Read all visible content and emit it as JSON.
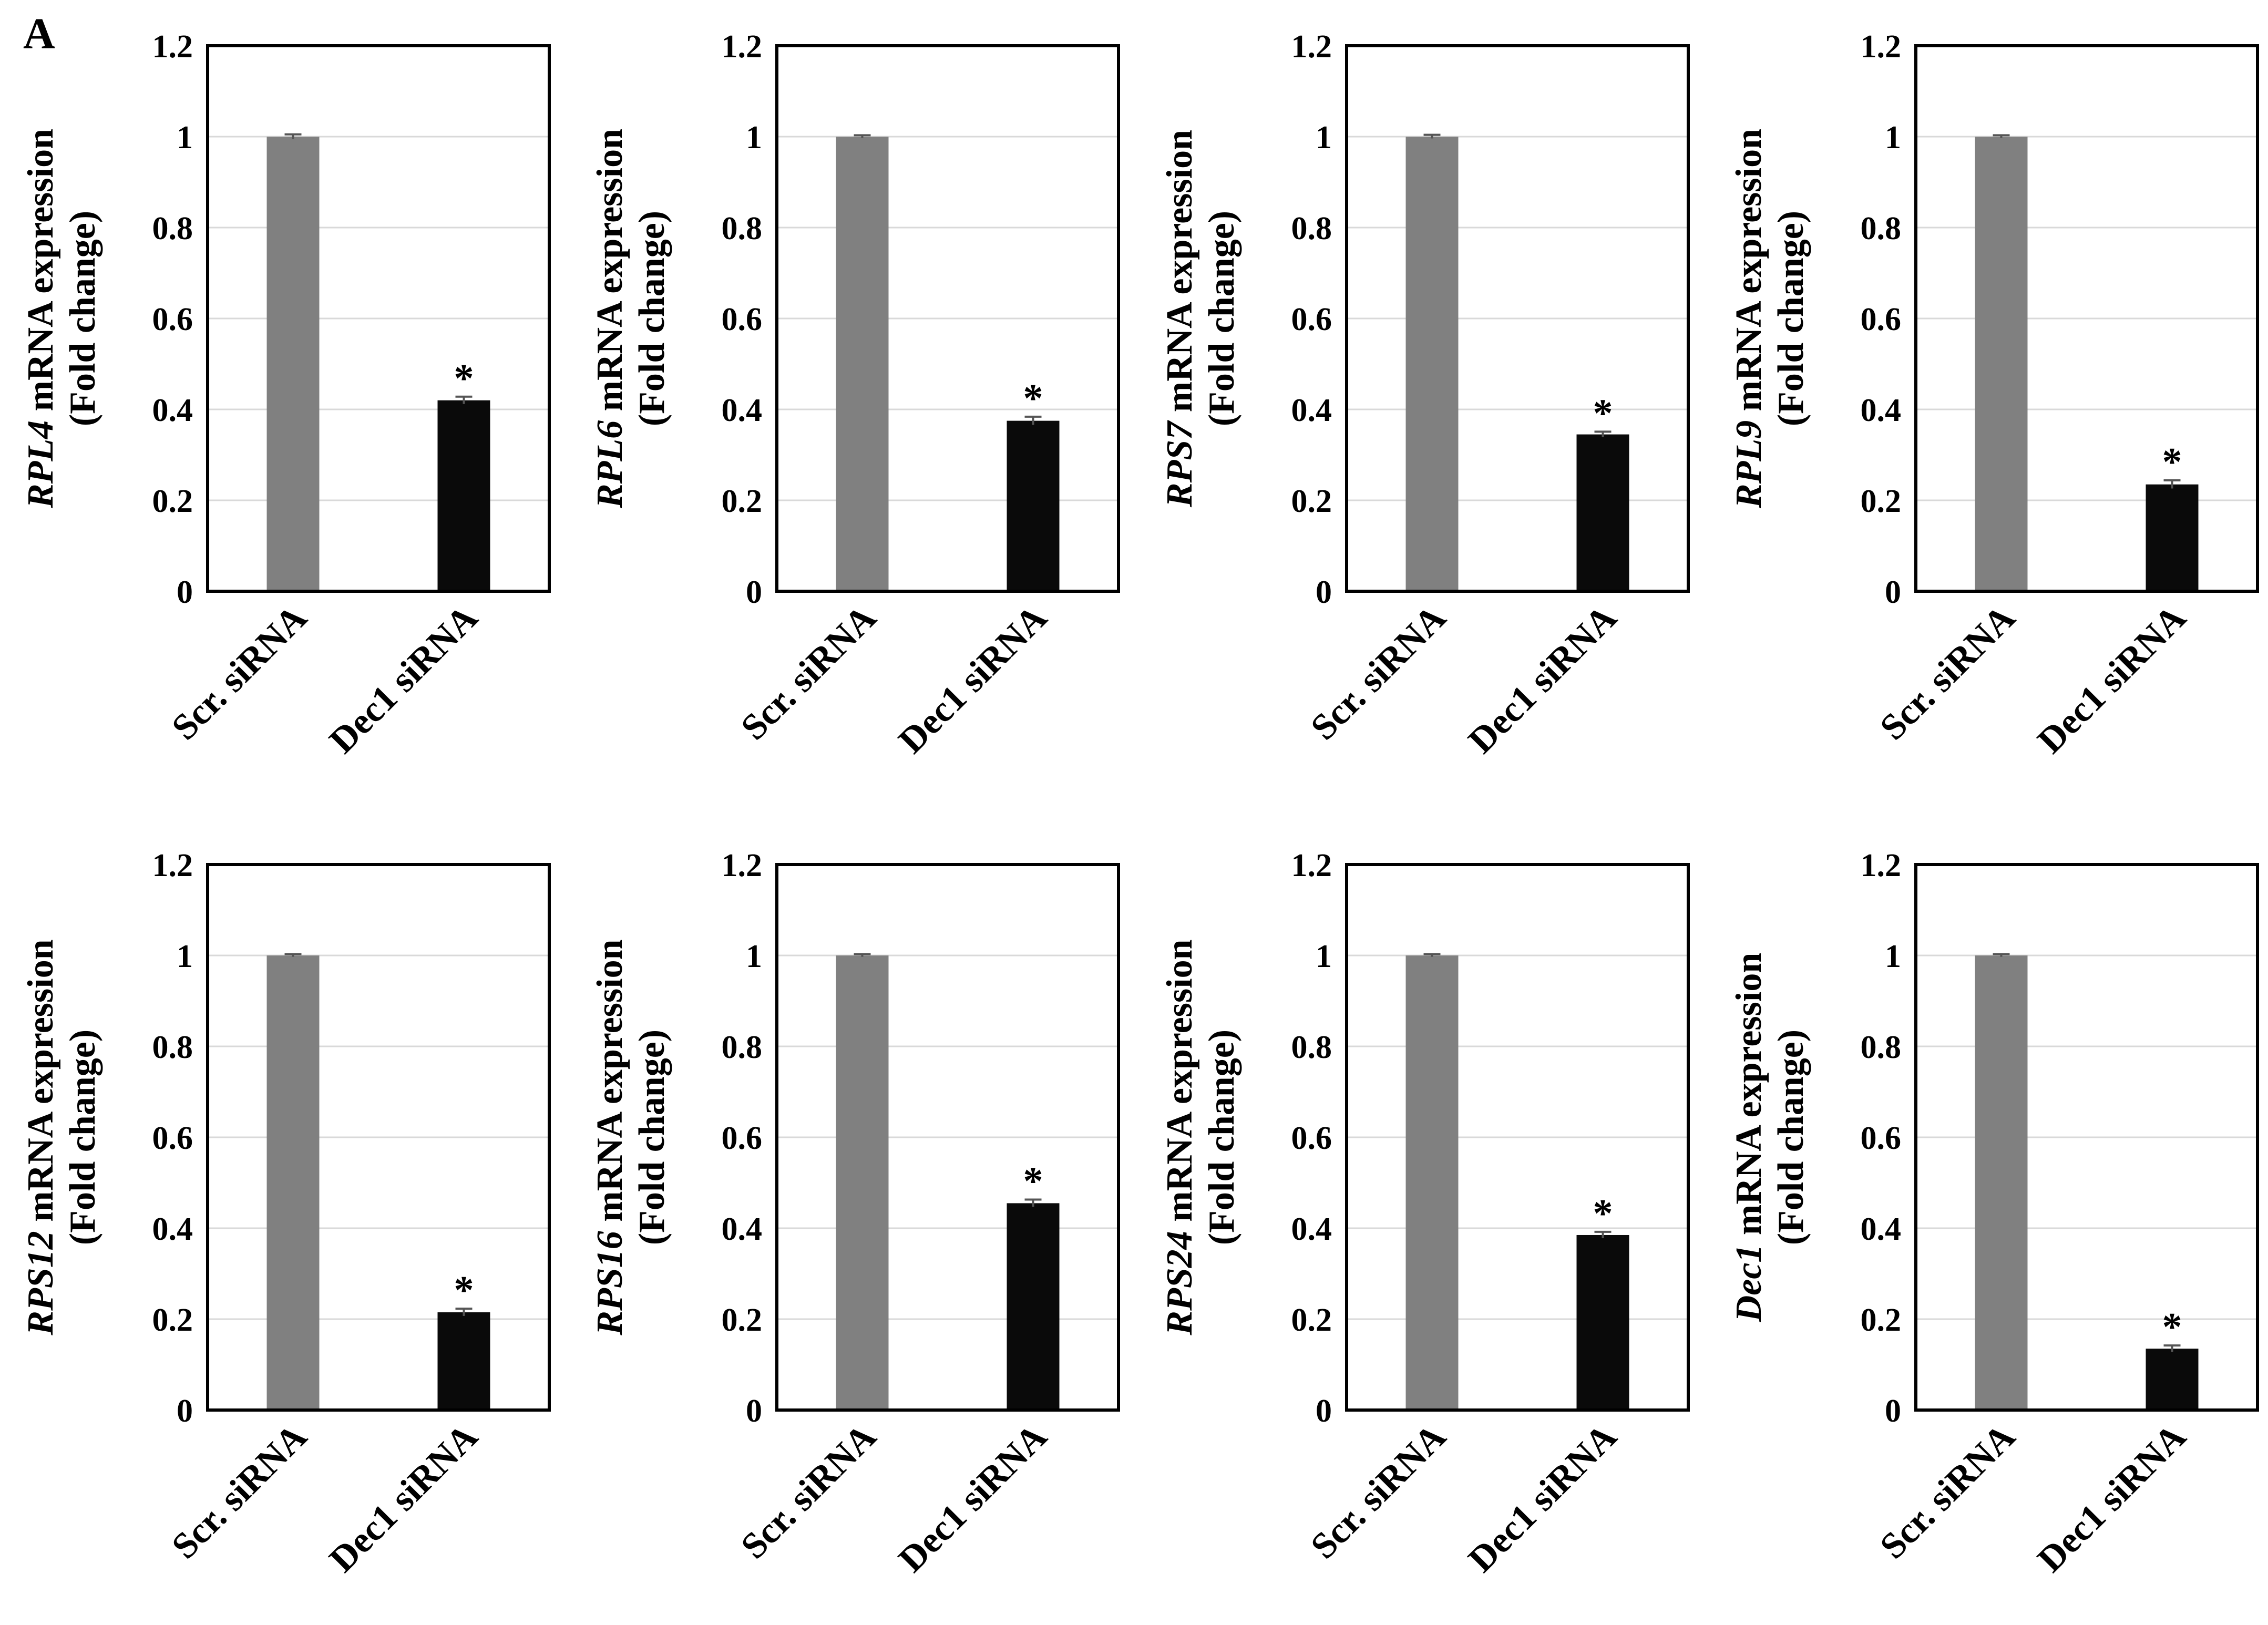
{
  "panel_label": "A",
  "colors": {
    "scr_bar": "#808080",
    "dec_bar": "#0a0a0a",
    "grid": "#d9d9d9",
    "frame": "#000000"
  },
  "chart_data": [
    {
      "type": "bar",
      "gene": "RPL4",
      "ylabel_suffix": " mRNA expression",
      "ylabel_line2": "(Fold change)",
      "categories": [
        "Scr. siRNA",
        "Dec1 siRNA"
      ],
      "values": [
        1.0,
        0.42
      ],
      "errors": [
        0.005,
        0.008
      ],
      "significance": [
        "",
        "*"
      ],
      "ylim": [
        0,
        1.2
      ],
      "yticks": [
        "0",
        "0.2",
        "0.4",
        "0.6",
        "0.8",
        "1",
        "1.2"
      ]
    },
    {
      "type": "bar",
      "gene": "RPL6",
      "ylabel_suffix": " mRNA expression",
      "ylabel_line2": "(Fold change)",
      "categories": [
        "Scr. siRNA",
        "Dec1 siRNA"
      ],
      "values": [
        1.0,
        0.375
      ],
      "errors": [
        0.003,
        0.009
      ],
      "significance": [
        "",
        "*"
      ],
      "ylim": [
        0,
        1.2
      ],
      "yticks": [
        "0",
        "0.2",
        "0.4",
        "0.6",
        "0.8",
        "1",
        "1.2"
      ]
    },
    {
      "type": "bar",
      "gene": "RPS7",
      "ylabel_suffix": " mRNA expression",
      "ylabel_line2": "(Fold change)",
      "categories": [
        "Scr. siRNA",
        "Dec1 siRNA"
      ],
      "values": [
        1.0,
        0.345
      ],
      "errors": [
        0.004,
        0.006
      ],
      "significance": [
        "",
        "*"
      ],
      "ylim": [
        0,
        1.2
      ],
      "yticks": [
        "0",
        "0.2",
        "0.4",
        "0.6",
        "0.8",
        "1",
        "1.2"
      ]
    },
    {
      "type": "bar",
      "gene": "RPL9",
      "ylabel_suffix": " mRNA expression",
      "ylabel_line2": "(Fold change)",
      "categories": [
        "Scr. siRNA",
        "Dec1 siRNA"
      ],
      "values": [
        1.0,
        0.235
      ],
      "errors": [
        0.003,
        0.009
      ],
      "significance": [
        "",
        "*"
      ],
      "ylim": [
        0,
        1.2
      ],
      "yticks": [
        "0",
        "0.2",
        "0.4",
        "0.6",
        "0.8",
        "1",
        "1.2"
      ]
    },
    {
      "type": "bar",
      "gene": "RPS12",
      "ylabel_suffix": " mRNA expression",
      "ylabel_line2": "(Fold change)",
      "categories": [
        "Scr. siRNA",
        "Dec1 siRNA"
      ],
      "values": [
        1.0,
        0.215
      ],
      "errors": [
        0.003,
        0.008
      ],
      "significance": [
        "",
        "*"
      ],
      "ylim": [
        0,
        1.2
      ],
      "yticks": [
        "0",
        "0.2",
        "0.4",
        "0.6",
        "0.8",
        "1",
        "1.2"
      ]
    },
    {
      "type": "bar",
      "gene": "RPS16",
      "ylabel_suffix": " mRNA expression",
      "ylabel_line2": "(Fold change)",
      "categories": [
        "Scr. siRNA",
        "Dec1 siRNA"
      ],
      "values": [
        1.0,
        0.455
      ],
      "errors": [
        0.003,
        0.008
      ],
      "significance": [
        "",
        "*"
      ],
      "ylim": [
        0,
        1.2
      ],
      "yticks": [
        "0",
        "0.2",
        "0.4",
        "0.6",
        "0.8",
        "1",
        "1.2"
      ]
    },
    {
      "type": "bar",
      "gene": "RPS24",
      "ylabel_suffix": " mRNA expression",
      "ylabel_line2": "(Fold change)",
      "categories": [
        "Scr. siRNA",
        "Dec1 siRNA"
      ],
      "values": [
        1.0,
        0.385
      ],
      "errors": [
        0.003,
        0.007
      ],
      "significance": [
        "",
        "*"
      ],
      "ylim": [
        0,
        1.2
      ],
      "yticks": [
        "0",
        "0.2",
        "0.4",
        "0.6",
        "0.8",
        "1",
        "1.2"
      ]
    },
    {
      "type": "bar",
      "gene": "Dec1",
      "ylabel_suffix": " mRNA expression",
      "ylabel_line2": "(Fold change)",
      "categories": [
        "Scr. siRNA",
        "Dec1 siRNA"
      ],
      "values": [
        1.0,
        0.135
      ],
      "errors": [
        0.003,
        0.007
      ],
      "significance": [
        "",
        "*"
      ],
      "ylim": [
        0,
        1.2
      ],
      "yticks": [
        "0",
        "0.2",
        "0.4",
        "0.6",
        "0.8",
        "1",
        "1.2"
      ]
    }
  ]
}
